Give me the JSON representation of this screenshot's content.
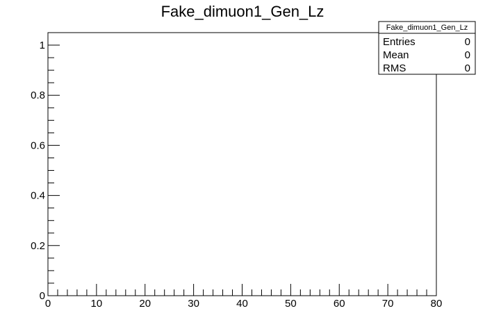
{
  "chart_data": {
    "type": "bar",
    "title": "Fake_dimuon1_Gen_Lz",
    "xlabel": "",
    "ylabel": "",
    "xlim": [
      0,
      80
    ],
    "ylim": [
      0,
      1.05
    ],
    "x_ticks": [
      0,
      10,
      20,
      30,
      40,
      50,
      60,
      70,
      80
    ],
    "x_tick_labels": [
      "0",
      "10",
      "20",
      "30",
      "40",
      "50",
      "60",
      "70",
      "80"
    ],
    "y_ticks": [
      0,
      0.2,
      0.4,
      0.6,
      0.8,
      1
    ],
    "y_tick_labels": [
      "0",
      "0.2",
      "0.4",
      "0.6",
      "0.8",
      "1"
    ],
    "grid": false,
    "legend": "none",
    "series": [],
    "stats_box": {
      "name": "Fake_dimuon1_Gen_Lz",
      "position": "top-right",
      "rows": [
        {
          "label": "Entries",
          "value": "0"
        },
        {
          "label": "Mean",
          "value": "0"
        },
        {
          "label": "RMS",
          "value": "0"
        }
      ]
    }
  }
}
